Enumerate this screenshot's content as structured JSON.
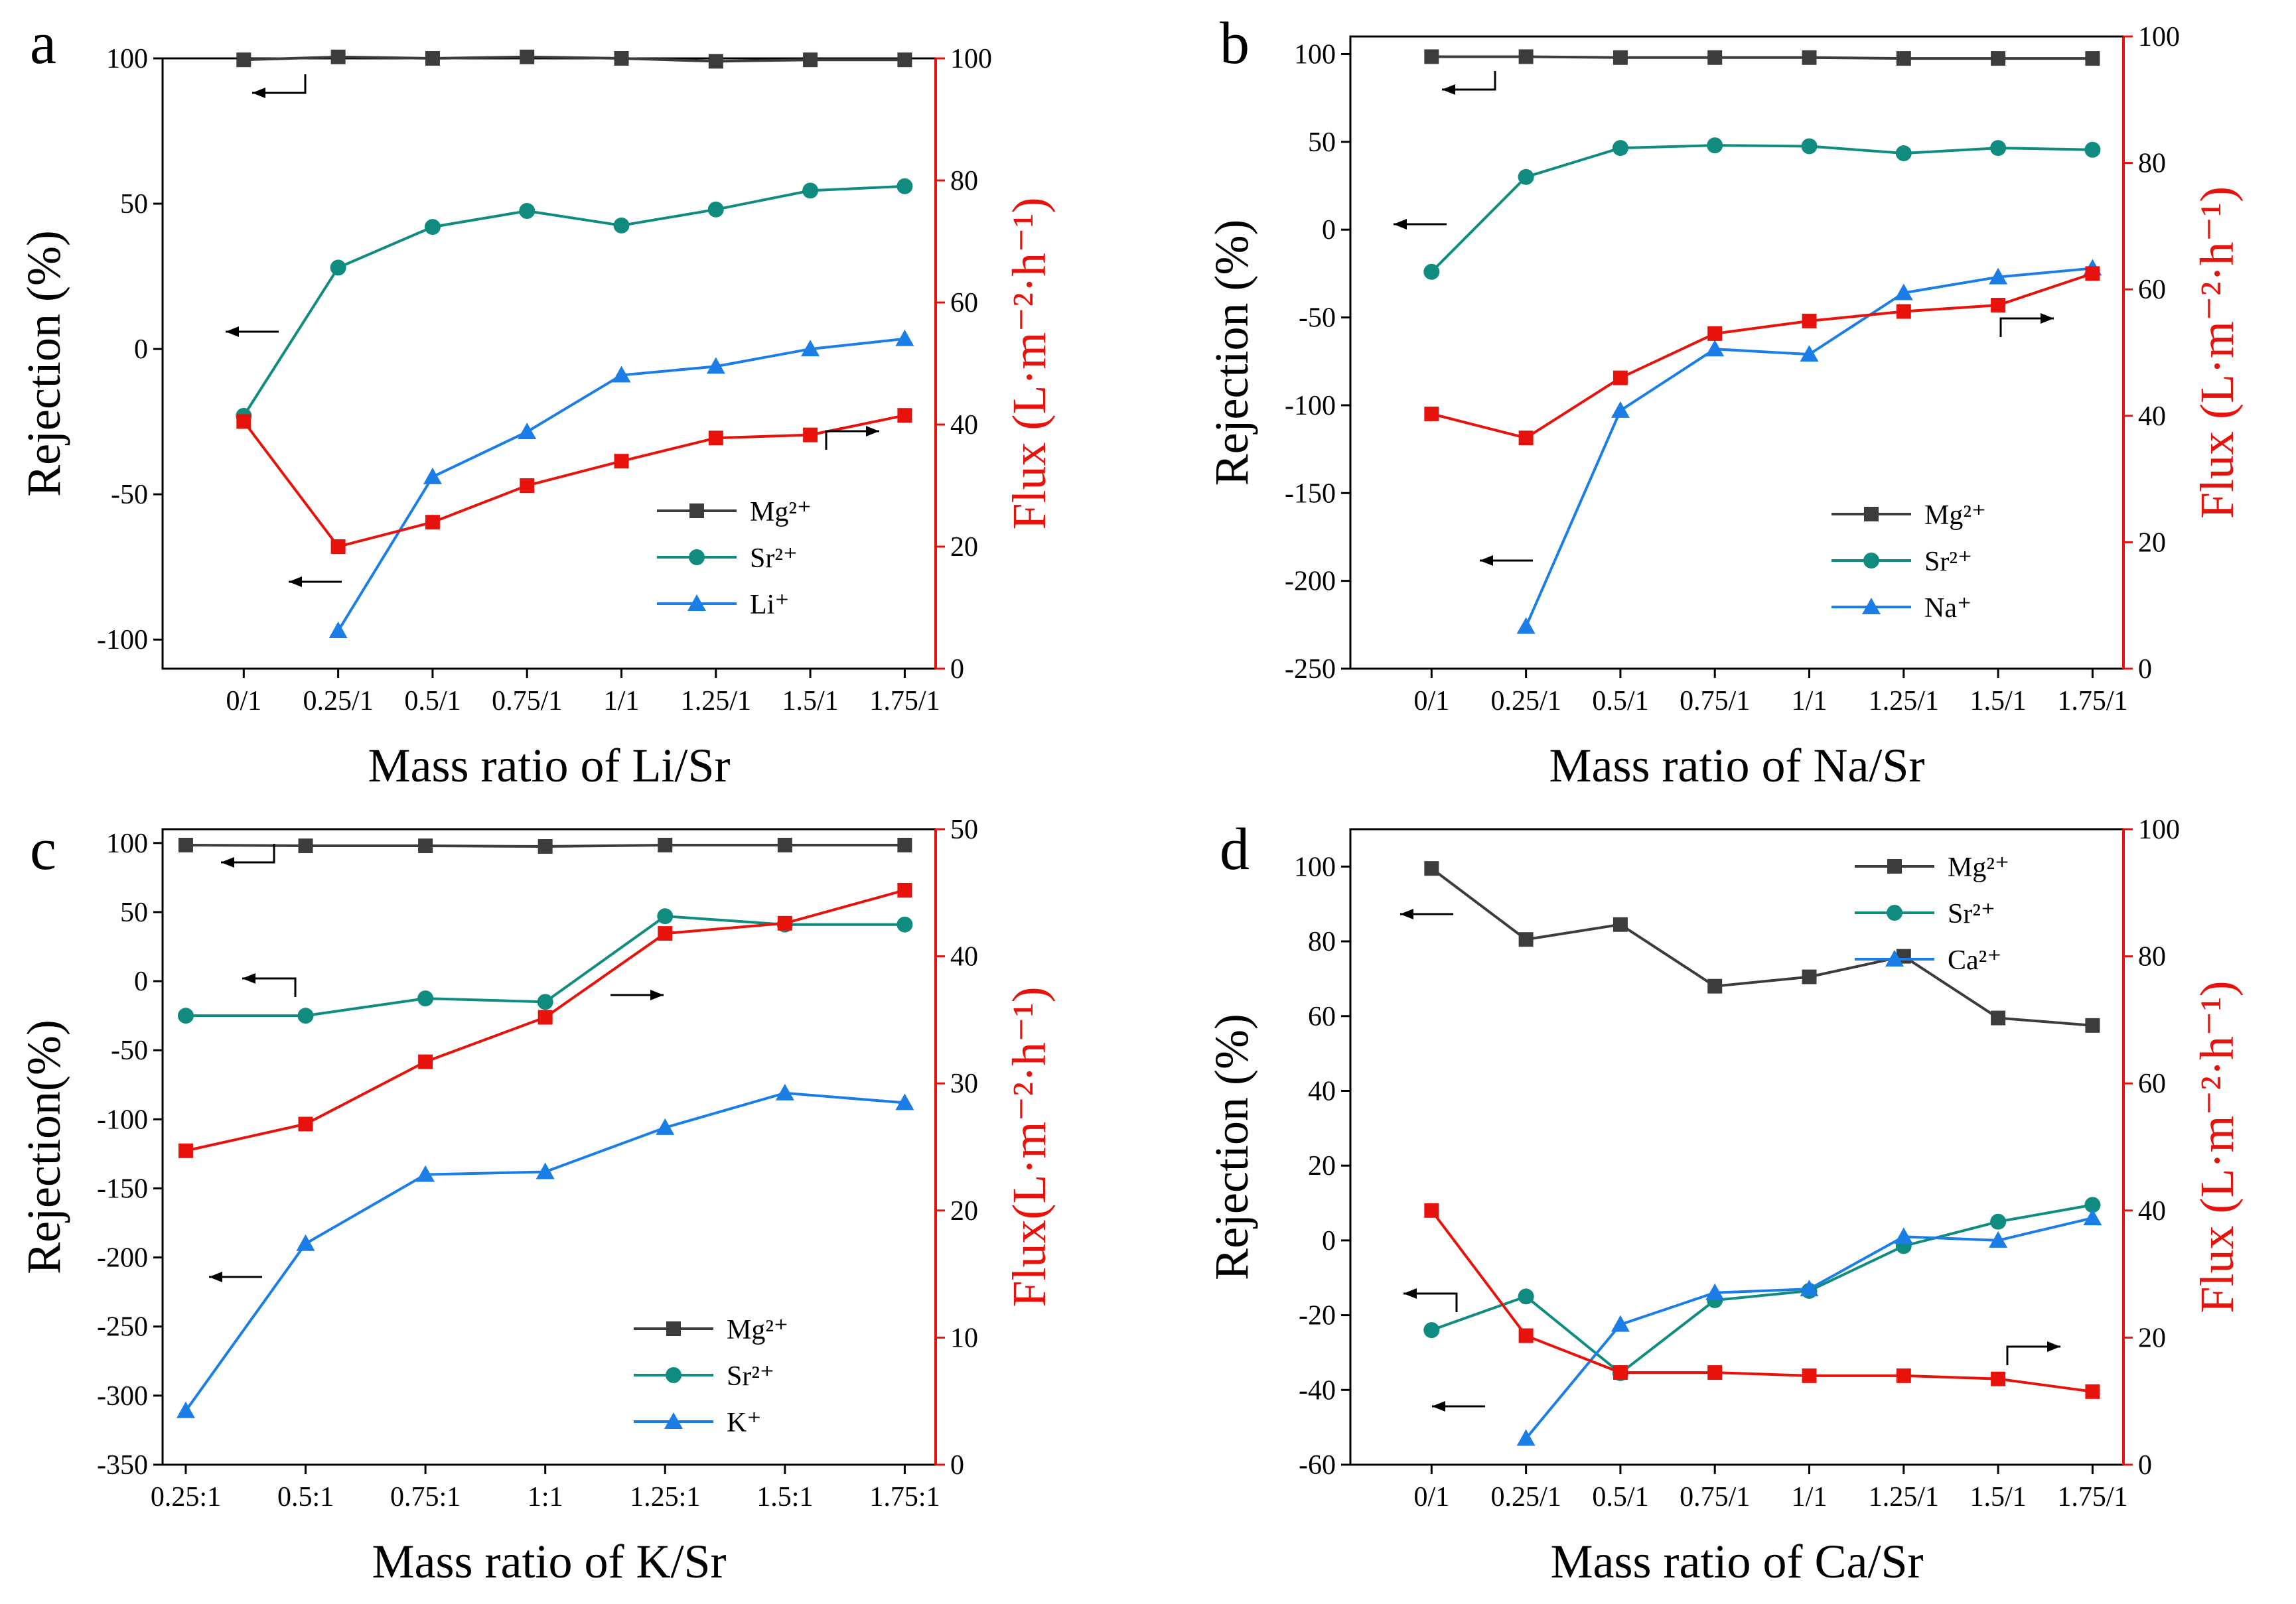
{
  "figure": {
    "colors": {
      "mg": "#3c3c3c",
      "sr": "#0f8b80",
      "x": "#1a7ee6",
      "flux": "#e8120c",
      "axis": "#000000",
      "right_axis": "#e8120c"
    }
  },
  "chart_data": [
    {
      "type": "line",
      "panel": "a",
      "xlabel": "Mass ratio of Li/Sr",
      "ylabel": "Rejection (%)",
      "y2label": "Flux (L·m⁻²·h⁻¹)",
      "categories": [
        "0/1",
        "0.25/1",
        "0.5/1",
        "0.75/1",
        "1/1",
        "1.25/1",
        "1.5/1",
        "1.75/1"
      ],
      "ylim": [
        -110,
        100
      ],
      "yticks": [
        100,
        50,
        0,
        -50,
        -100
      ],
      "y2lim": [
        0,
        100
      ],
      "y2ticks": [
        0,
        20,
        40,
        60,
        80,
        100
      ],
      "series": [
        {
          "name": "Mg²⁺",
          "key": "mg",
          "axis": "left",
          "marker": "square",
          "values": [
            99.5,
            100.5,
            100,
            100.5,
            100,
            99,
            99.5,
            99.5
          ]
        },
        {
          "name": "Sr²⁺",
          "key": "sr",
          "axis": "left",
          "marker": "circle",
          "values": [
            -23,
            28,
            42,
            47.5,
            42.5,
            48,
            54.5,
            56
          ]
        },
        {
          "name": "Li⁺",
          "key": "x",
          "axis": "left",
          "marker": "triangle",
          "values": [
            null,
            -97,
            -44,
            -28.5,
            -9,
            -6,
            0,
            3.5
          ]
        },
        {
          "name": "Flux",
          "key": "flux",
          "axis": "right",
          "marker": "square",
          "legend": false,
          "values": [
            40.5,
            20,
            24,
            30,
            34,
            37.8,
            38.3,
            41.5
          ]
        }
      ],
      "legend_position": "lower-right"
    },
    {
      "type": "line",
      "panel": "b",
      "xlabel": "Mass ratio of Na/Sr",
      "ylabel": "Rejection (%)",
      "y2label": "Flux (L·m⁻²·h⁻¹)",
      "categories": [
        "0/1",
        "0.25/1",
        "0.5/1",
        "0.75/1",
        "1/1",
        "1.25/1",
        "1.5/1",
        "1.75/1"
      ],
      "ylim": [
        -250,
        110
      ],
      "yticks": [
        100,
        50,
        0,
        -50,
        -100,
        -150,
        -200,
        -250
      ],
      "y2lim": [
        0,
        100
      ],
      "y2ticks": [
        0,
        20,
        40,
        60,
        80,
        100
      ],
      "series": [
        {
          "name": "Mg²⁺",
          "key": "mg",
          "axis": "left",
          "marker": "square",
          "values": [
            98.5,
            98.5,
            98,
            98,
            98,
            97.5,
            97.5,
            97.5
          ]
        },
        {
          "name": "Sr²⁺",
          "key": "sr",
          "axis": "left",
          "marker": "circle",
          "values": [
            -24,
            30,
            46.5,
            48,
            47.5,
            43.5,
            46.5,
            45.5
          ]
        },
        {
          "name": "Na⁺",
          "key": "x",
          "axis": "left",
          "marker": "triangle",
          "values": [
            null,
            -226,
            -103,
            -68,
            -71,
            -36,
            -27,
            -22
          ]
        },
        {
          "name": "Flux",
          "key": "flux",
          "axis": "right",
          "marker": "square",
          "legend": false,
          "values": [
            40.3,
            36.5,
            46,
            53,
            55,
            56.5,
            57.5,
            62.5
          ]
        }
      ],
      "legend_position": "lower-right"
    },
    {
      "type": "line",
      "panel": "c",
      "xlabel": "Mass ratio of K/Sr",
      "ylabel": "Rejection(%)",
      "y2label": "Flux(L·m⁻²·h⁻¹)",
      "categories": [
        "0.25:1",
        "0.5:1",
        "0.75:1",
        "1:1",
        "1.25:1",
        "1.5:1",
        "1.75:1"
      ],
      "ylim": [
        -350,
        110
      ],
      "yticks": [
        100,
        50,
        0,
        -50,
        -100,
        -150,
        -200,
        -250,
        -300,
        -350
      ],
      "y2lim": [
        0,
        50
      ],
      "y2ticks": [
        0,
        10,
        20,
        30,
        40,
        50
      ],
      "series": [
        {
          "name": "Mg²⁺",
          "key": "mg",
          "axis": "left",
          "marker": "square",
          "values": [
            98.5,
            98,
            98,
            97.5,
            98.5,
            98.5,
            98.5
          ]
        },
        {
          "name": "Sr²⁺",
          "key": "sr",
          "axis": "left",
          "marker": "circle",
          "values": [
            -25,
            -25,
            -12.5,
            -15,
            47,
            41,
            41
          ]
        },
        {
          "name": "K⁺",
          "key": "x",
          "axis": "left",
          "marker": "triangle",
          "values": [
            -311,
            -190,
            -140,
            -138,
            -106,
            -81,
            -88
          ]
        },
        {
          "name": "Flux",
          "key": "flux",
          "axis": "right",
          "marker": "square",
          "legend": false,
          "values": [
            24.7,
            26.8,
            31.7,
            35.2,
            41.8,
            42.6,
            45.2
          ]
        }
      ],
      "legend_position": "lower-right"
    },
    {
      "type": "line",
      "panel": "d",
      "xlabel": "Mass ratio of Ca/Sr",
      "ylabel": "Rejection (%)",
      "y2label": "Flux (L·m⁻²·h⁻¹)",
      "categories": [
        "0/1",
        "0.25/1",
        "0.5/1",
        "0.75/1",
        "1/1",
        "1.25/1",
        "1.5/1",
        "1.75/1"
      ],
      "ylim": [
        -60,
        110
      ],
      "yticks": [
        100,
        80,
        60,
        40,
        20,
        0,
        -20,
        -40,
        -60
      ],
      "y2lim": [
        0,
        100
      ],
      "y2ticks": [
        0,
        20,
        40,
        60,
        80,
        100
      ],
      "series": [
        {
          "name": "Mg²⁺",
          "key": "mg",
          "axis": "left",
          "marker": "square",
          "values": [
            99.5,
            80.5,
            84.5,
            68,
            70.5,
            76,
            59.5,
            57.5
          ]
        },
        {
          "name": "Sr²⁺",
          "key": "sr",
          "axis": "left",
          "marker": "circle",
          "values": [
            -24,
            -15,
            -35.5,
            -16,
            -13.5,
            -1.5,
            5,
            9.5
          ]
        },
        {
          "name": "Ca²⁺",
          "key": "x",
          "axis": "left",
          "marker": "triangle",
          "values": [
            null,
            -53,
            -22.5,
            -14,
            -13,
            1,
            0,
            6
          ]
        },
        {
          "name": "Flux",
          "key": "flux",
          "axis": "right",
          "marker": "square",
          "legend": false,
          "values": [
            40,
            20.3,
            14.5,
            14.5,
            14,
            14,
            13.5,
            11.5
          ]
        }
      ],
      "legend_position": "upper-right"
    }
  ]
}
